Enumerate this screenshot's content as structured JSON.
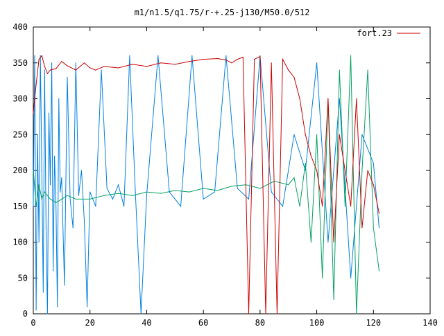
{
  "chart_data": {
    "type": "line",
    "title": "m1/n1.5/q1.75/r-+.25-j130/M50.0/512",
    "xlabel": "",
    "ylabel": "",
    "xlim": [
      0,
      140
    ],
    "ylim": [
      0,
      400
    ],
    "x_ticks": [
      0,
      20,
      40,
      60,
      80,
      100,
      120,
      140
    ],
    "y_ticks": [
      0,
      50,
      100,
      150,
      200,
      250,
      300,
      350,
      400
    ],
    "grid": false,
    "legend_position": "top-right",
    "legend": [
      {
        "label": "fort.23",
        "color": "#cc0000"
      }
    ],
    "series": [
      {
        "name": "fort.23",
        "color": "#cc0000",
        "wrap": [
          0,
          360
        ],
        "x": [
          0,
          1,
          2,
          3,
          4,
          5,
          6,
          8,
          10,
          12,
          15,
          18,
          20,
          22,
          25,
          30,
          35,
          40,
          45,
          50,
          55,
          60,
          65,
          68,
          70,
          72,
          74,
          76,
          78,
          80,
          82,
          84,
          86,
          88,
          90,
          92,
          94,
          96,
          98,
          100,
          102,
          104,
          106,
          108,
          110,
          112,
          114,
          116,
          118,
          120,
          122
        ],
        "y": [
          280,
          320,
          355,
          360,
          345,
          335,
          340,
          342,
          352,
          346,
          340,
          350,
          343,
          340,
          345,
          343,
          348,
          345,
          350,
          348,
          352,
          355,
          356,
          354,
          350,
          355,
          358,
          0,
          355,
          359,
          0,
          350,
          0,
          355,
          340,
          330,
          300,
          250,
          220,
          200,
          150,
          300,
          100,
          250,
          200,
          150,
          300,
          120,
          200,
          180,
          140
        ]
      },
      {
        "name": "",
        "color": "#0080e0",
        "wrap": [
          0,
          360
        ],
        "x": [
          0,
          0.5,
          1,
          1.5,
          2,
          2.5,
          3,
          3.5,
          4,
          4.5,
          5,
          5.5,
          6,
          6.5,
          7,
          7.5,
          8,
          8.5,
          9,
          9.5,
          10,
          11,
          12,
          13,
          14,
          15,
          16,
          17,
          18,
          19,
          20,
          22,
          24,
          26,
          28,
          30,
          32,
          34,
          36,
          38,
          40,
          44,
          48,
          52,
          56,
          60,
          64,
          68,
          72,
          76,
          80,
          84,
          88,
          92,
          96,
          100,
          104,
          108,
          112,
          116,
          120,
          122
        ],
        "y": [
          150,
          360,
          5,
          250,
          100,
          360,
          200,
          30,
          340,
          120,
          0,
          280,
          180,
          350,
          60,
          220,
          150,
          10,
          300,
          170,
          190,
          40,
          330,
          160,
          120,
          350,
          165,
          200,
          130,
          10,
          170,
          150,
          340,
          175,
          160,
          180,
          150,
          360,
          170,
          0,
          165,
          360,
          170,
          150,
          360,
          160,
          170,
          360,
          175,
          160,
          360,
          170,
          150,
          250,
          200,
          350,
          100,
          300,
          50,
          250,
          210,
          120
        ]
      },
      {
        "name": "",
        "color": "#00a060",
        "wrap": [
          0,
          360
        ],
        "x": [
          0,
          1,
          2,
          3,
          4,
          5,
          6,
          8,
          10,
          12,
          15,
          20,
          25,
          30,
          35,
          40,
          45,
          50,
          55,
          60,
          65,
          70,
          75,
          80,
          85,
          90,
          92,
          94,
          96,
          98,
          100,
          102,
          104,
          106,
          108,
          110,
          112,
          114,
          116,
          118,
          120,
          122
        ],
        "y": [
          200,
          150,
          180,
          160,
          170,
          165,
          160,
          155,
          160,
          165,
          160,
          160,
          165,
          168,
          165,
          170,
          168,
          172,
          170,
          175,
          172,
          178,
          180,
          175,
          185,
          180,
          190,
          150,
          210,
          100,
          250,
          50,
          300,
          20,
          340,
          150,
          360,
          0,
          200,
          340,
          120,
          60
        ]
      }
    ]
  }
}
